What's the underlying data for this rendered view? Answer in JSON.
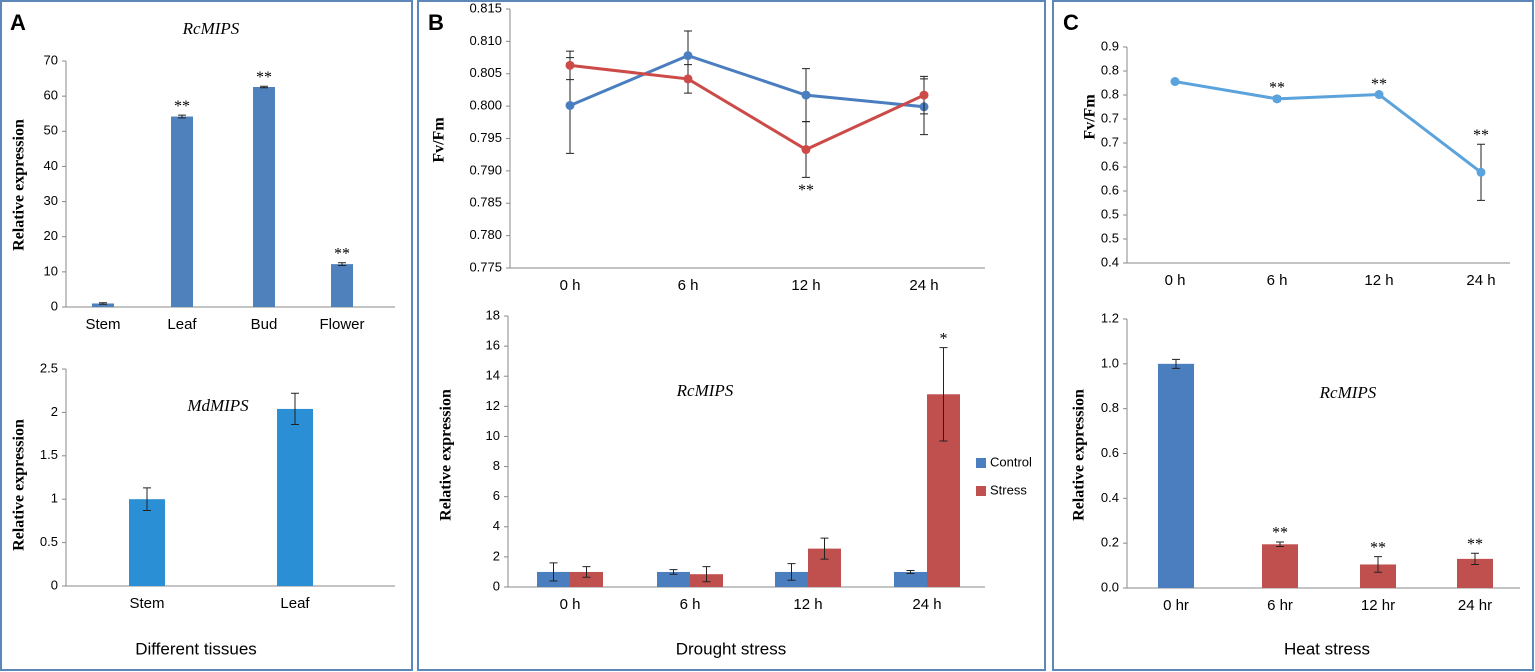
{
  "panels": [
    {
      "letter": "A",
      "xlabel": "Different tissues"
    },
    {
      "letter": "B",
      "xlabel": "Drought stress"
    },
    {
      "letter": "C",
      "xlabel": "Heat stress"
    }
  ],
  "chart_data": [
    {
      "type": "bar",
      "title": "RcMIPS",
      "ylabel": "Relative expression",
      "categories": [
        "Stem",
        "Leaf",
        "Bud",
        "Flower"
      ],
      "values": [
        1,
        54.2,
        62.6,
        12.2
      ],
      "errors": [
        0.2,
        0.4,
        0.2,
        0.4
      ],
      "annotations": [
        null,
        "**",
        "**",
        "**"
      ],
      "color": "#4f81bd",
      "ylim": [
        0,
        70
      ],
      "yticks": [
        0,
        10,
        20,
        30,
        40,
        50,
        60,
        70
      ]
    },
    {
      "type": "bar",
      "title": "MdMIPS",
      "ylabel": "Relative expression",
      "categories": [
        "Stem",
        "Leaf"
      ],
      "values": [
        1,
        2.04
      ],
      "errors": [
        0.13,
        0.18
      ],
      "color": "#2a8fd4",
      "ylim": [
        0,
        2.5
      ],
      "yticks": [
        0,
        0.5,
        1,
        1.5,
        2,
        2.5
      ]
    },
    {
      "type": "line",
      "ylabel": "Fv/Fm",
      "categories": [
        "0 h",
        "6 h",
        "12 h",
        "24 h"
      ],
      "series": [
        {
          "color": "#4a7ebf",
          "values": [
            0.8001,
            0.8078,
            0.8017,
            0.7999
          ],
          "errors": [
            0.0074,
            0.0038,
            0.0041,
            0.0043
          ]
        },
        {
          "color": "#cc4a47",
          "values": [
            0.8063,
            0.8042,
            0.7933,
            0.8017
          ],
          "errors": [
            0.0022,
            0.0022,
            0.0043,
            0.0029
          ],
          "annotations": [
            null,
            null,
            "**",
            null
          ]
        }
      ],
      "ylim": [
        0.775,
        0.815
      ],
      "yticks": [
        0.775,
        {
          "value": 0.78,
          "label": "0.780"
        },
        0.785,
        {
          "value": 0.79,
          "label": "0.790"
        },
        0.795,
        {
          "value": 0.8,
          "label": "0.800"
        },
        0.805,
        {
          "value": 0.81,
          "label": "0.810"
        },
        0.815
      ]
    },
    {
      "type": "grouped-bar",
      "title": "RcMIPS",
      "ylabel": "Relative expression",
      "categories": [
        "0 h",
        "6 h",
        "12 h",
        "24 h"
      ],
      "series": [
        {
          "name": "Control",
          "color": "#4a7ebf",
          "values": [
            1,
            1,
            1,
            1
          ],
          "errors": [
            0.6,
            0.15,
            0.55,
            0.1
          ]
        },
        {
          "name": "Stress",
          "color": "#c0504d",
          "values": [
            1,
            0.85,
            2.55,
            12.8
          ],
          "errors": [
            0.35,
            0.5,
            0.7,
            3.1
          ],
          "annotations": [
            null,
            null,
            null,
            "*"
          ]
        }
      ],
      "ylim": [
        0,
        18
      ],
      "yticks": [
        0,
        2,
        4,
        6,
        8,
        10,
        12,
        14,
        16,
        18
      ]
    },
    {
      "type": "line",
      "ylabel": "Fv/Fm",
      "categories": [
        "0 h",
        "6 h",
        "12 h",
        "24 h"
      ],
      "series": [
        {
          "color": "#5ba3dc",
          "values": [
            0.82,
            0.78,
            0.79,
            0.61
          ],
          "errors": [
            0.003,
            0.005,
            0.003,
            0.065
          ],
          "annotations": [
            null,
            "**",
            "**",
            "**"
          ]
        }
      ],
      "ylim": [
        0.4,
        0.9
      ],
      "yticks": [
        0.4,
        {
          "value": 0.4556,
          "label": "0.5"
        },
        {
          "value": 0.5111,
          "label": "0.5"
        },
        {
          "value": 0.5667,
          "label": "0.6"
        },
        {
          "value": 0.6222,
          "label": "0.6"
        },
        {
          "value": 0.6778,
          "label": "0.7"
        },
        {
          "value": 0.7333,
          "label": "0.7"
        },
        {
          "value": 0.7889,
          "label": "0.8"
        },
        {
          "value": 0.8444,
          "label": "0.8"
        },
        0.9
      ]
    },
    {
      "type": "bar",
      "title": "RcMIPS",
      "ylabel": "Relative expression",
      "categories": [
        "0 hr",
        "6 hr",
        "12 hr",
        "24 hr"
      ],
      "values": [
        1,
        0.195,
        0.105,
        0.13
      ],
      "errors": [
        0.02,
        0.01,
        0.035,
        0.025
      ],
      "annotations": [
        null,
        "**",
        "**",
        "**"
      ],
      "colors": [
        "#4a7ebf",
        "#c0504d",
        "#c0504d",
        "#c0504d"
      ],
      "ylim": [
        0,
        1.2
      ],
      "yticks": [
        {
          "value": 0,
          "label": "0.0"
        },
        0.2,
        0.4,
        0.6,
        0.8,
        {
          "value": 1,
          "label": "1.0"
        },
        1.2
      ]
    }
  ]
}
